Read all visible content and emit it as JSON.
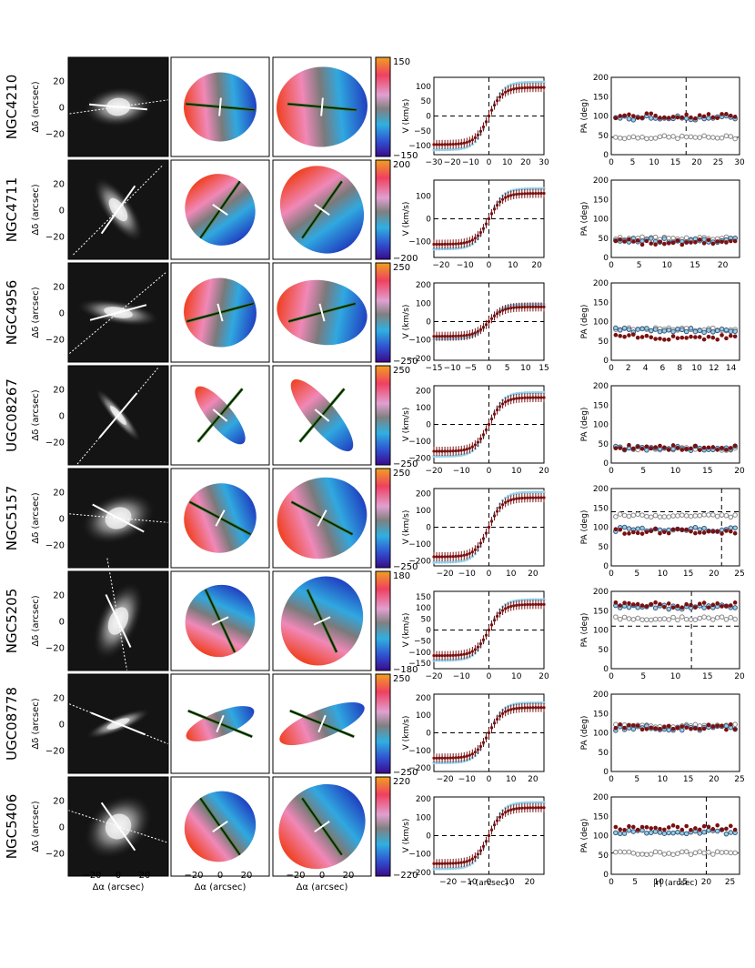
{
  "figure": {
    "image_axis_label_y": "Δδ (arcsec)",
    "image_axis_label_x": "Δα (arcsec)",
    "vel_axis_label_y": "V (km/s)",
    "vel_axis_label_x": "r (arcsec)",
    "pa_axis_label_y": "PA (deg)",
    "pa_axis_label_x": "|r| (arcsec)",
    "image_ticks": [
      "20",
      "0",
      "−20"
    ],
    "image_xticks": [
      "−20",
      "0",
      "20"
    ],
    "pa_yticks": [
      "200",
      "150",
      "100",
      "50",
      "0"
    ],
    "colors": {
      "dark_red": "#7a1010",
      "light_blue": "#8fd0ea",
      "gray_circle": "#888888",
      "dark_green": "#2a6e1a"
    }
  },
  "galaxies": [
    {
      "name": "NGC4210",
      "cb_max": "150",
      "cb_min": "−150",
      "vel_yticks": [
        "100",
        "50",
        "0",
        "−50",
        "−100"
      ],
      "vel_ylim": [
        -130,
        130
      ],
      "vel_xticks": [
        "−30",
        "−20",
        "−10",
        "0",
        "10",
        "20",
        "30"
      ],
      "vel_xlim": [
        -30,
        30
      ],
      "vmax": 120,
      "pa_xticks": [
        "0",
        "5",
        "10",
        "15",
        "20",
        "25",
        "30"
      ],
      "pa_xlim": [
        0,
        30
      ],
      "pa_gas": 100,
      "pa_star": 95,
      "pa_phot": 45,
      "pa_vline": 17.5,
      "pa_hline": 45,
      "slit_angle": -5,
      "dotted_angle": 8
    },
    {
      "name": "NGC4711",
      "cb_max": "200",
      "cb_min": "−200",
      "vel_yticks": [
        "100",
        "0",
        "−100"
      ],
      "vel_ylim": [
        -170,
        170
      ],
      "vel_xticks": [
        "−20",
        "−10",
        "0",
        "10",
        "20"
      ],
      "vel_xlim": [
        -23,
        23
      ],
      "vmax": 140,
      "pa_xticks": [
        "0",
        "5",
        "10",
        "15",
        "20"
      ],
      "pa_xlim": [
        0,
        23
      ],
      "pa_gas": 40,
      "pa_star": 45,
      "pa_phot": 50,
      "pa_vline": null,
      "pa_hline": null,
      "slit_angle": 55,
      "dotted_angle": 45
    },
    {
      "name": "NGC4956",
      "cb_max": "250",
      "cb_min": "−250",
      "vel_yticks": [
        "200",
        "100",
        "0",
        "−100",
        "−200"
      ],
      "vel_ylim": [
        -210,
        210
      ],
      "vel_xticks": [
        "−15",
        "−10",
        "−5",
        "0",
        "5",
        "10",
        "15"
      ],
      "vel_xlim": [
        -15,
        15
      ],
      "vmax": 100,
      "pa_xticks": [
        "0",
        "2",
        "4",
        "6",
        "8",
        "10",
        "12",
        "14"
      ],
      "pa_xlim": [
        0,
        15
      ],
      "pa_gas": 60,
      "pa_star": 78,
      "pa_phot": 80,
      "pa_vline": null,
      "pa_hline": null,
      "slit_angle": 15,
      "dotted_angle": 40
    },
    {
      "name": "UGC08267",
      "cb_max": "250",
      "cb_min": "−250",
      "vel_yticks": [
        "200",
        "100",
        "0",
        "−100",
        "−200"
      ],
      "vel_ylim": [
        -230,
        230
      ],
      "vel_xticks": [
        "−20",
        "−10",
        "0",
        "10",
        "20"
      ],
      "vel_xlim": [
        -20,
        20
      ],
      "vmax": 200,
      "pa_xticks": [
        "0",
        "5",
        "10",
        "15",
        "20"
      ],
      "pa_xlim": [
        0,
        20
      ],
      "pa_gas": 40,
      "pa_star": 38,
      "pa_phot": 37,
      "pa_vline": null,
      "pa_hline": null,
      "slit_angle": 50,
      "dotted_angle": 50
    },
    {
      "name": "NGC5157",
      "cb_max": "250",
      "cb_min": "−250",
      "vel_yticks": [
        "200",
        "100",
        "0",
        "−100",
        "−200"
      ],
      "vel_ylim": [
        -230,
        230
      ],
      "vel_xticks": [
        "−20",
        "−10",
        "0",
        "10",
        "20"
      ],
      "vel_xlim": [
        -25,
        25
      ],
      "vmax": 220,
      "pa_xticks": [
        "0",
        "5",
        "10",
        "15",
        "20",
        "25"
      ],
      "pa_xlim": [
        0,
        25
      ],
      "pa_gas": 90,
      "pa_star": 95,
      "pa_phot": 130,
      "pa_vline": 21.5,
      "pa_hline": 140,
      "slit_angle": -28,
      "dotted_angle": -5
    },
    {
      "name": "NGC5205",
      "cb_max": "180",
      "cb_min": "−180",
      "vel_yticks": [
        "150",
        "100",
        "50",
        "0",
        "−50",
        "−100",
        "−150"
      ],
      "vel_ylim": [
        -175,
        175
      ],
      "vel_xticks": [
        "−20",
        "−10",
        "0",
        "10",
        "20"
      ],
      "vel_xlim": [
        -20,
        20
      ],
      "vmax": 145,
      "pa_xticks": [
        "0",
        "5",
        "10",
        "15",
        "20"
      ],
      "pa_xlim": [
        0,
        20
      ],
      "pa_gas": 165,
      "pa_star": 160,
      "pa_phot": 130,
      "pa_vline": 12.5,
      "pa_hline": 110,
      "slit_angle": -65,
      "dotted_angle": -80
    },
    {
      "name": "UGC08778",
      "cb_max": "250",
      "cb_min": "−250",
      "vel_yticks": [
        "200",
        "100",
        "0",
        "−100",
        "−200"
      ],
      "vel_ylim": [
        -220,
        220
      ],
      "vel_xticks": [
        "−20",
        "−10",
        "0",
        "10",
        "20"
      ],
      "vel_xlim": [
        -25,
        25
      ],
      "vmax": 180,
      "pa_xticks": [
        "0",
        "5",
        "10",
        "15",
        "20",
        "25"
      ],
      "pa_xlim": [
        0,
        25
      ],
      "pa_gas": 115,
      "pa_star": 112,
      "pa_phot": 118,
      "pa_vline": null,
      "pa_hline": null,
      "slit_angle": -22,
      "dotted_angle": -22
    },
    {
      "name": "NGC5406",
      "cb_max": "220",
      "cb_min": "−220",
      "vel_yticks": [
        "200",
        "100",
        "0",
        "−100",
        "−200"
      ],
      "vel_ylim": [
        -210,
        210
      ],
      "vel_xticks": [
        "−20",
        "−10",
        "0",
        "10",
        "20"
      ],
      "vel_xlim": [
        -27,
        27
      ],
      "vmax": 190,
      "pa_xticks": [
        "0",
        "5",
        "10",
        "15",
        "20",
        "25"
      ],
      "pa_xlim": [
        0,
        27
      ],
      "pa_gas": 120,
      "pa_star": 110,
      "pa_phot": 55,
      "pa_vline": 20,
      "pa_hline": 55,
      "slit_angle": -55,
      "dotted_angle": -18
    }
  ]
}
